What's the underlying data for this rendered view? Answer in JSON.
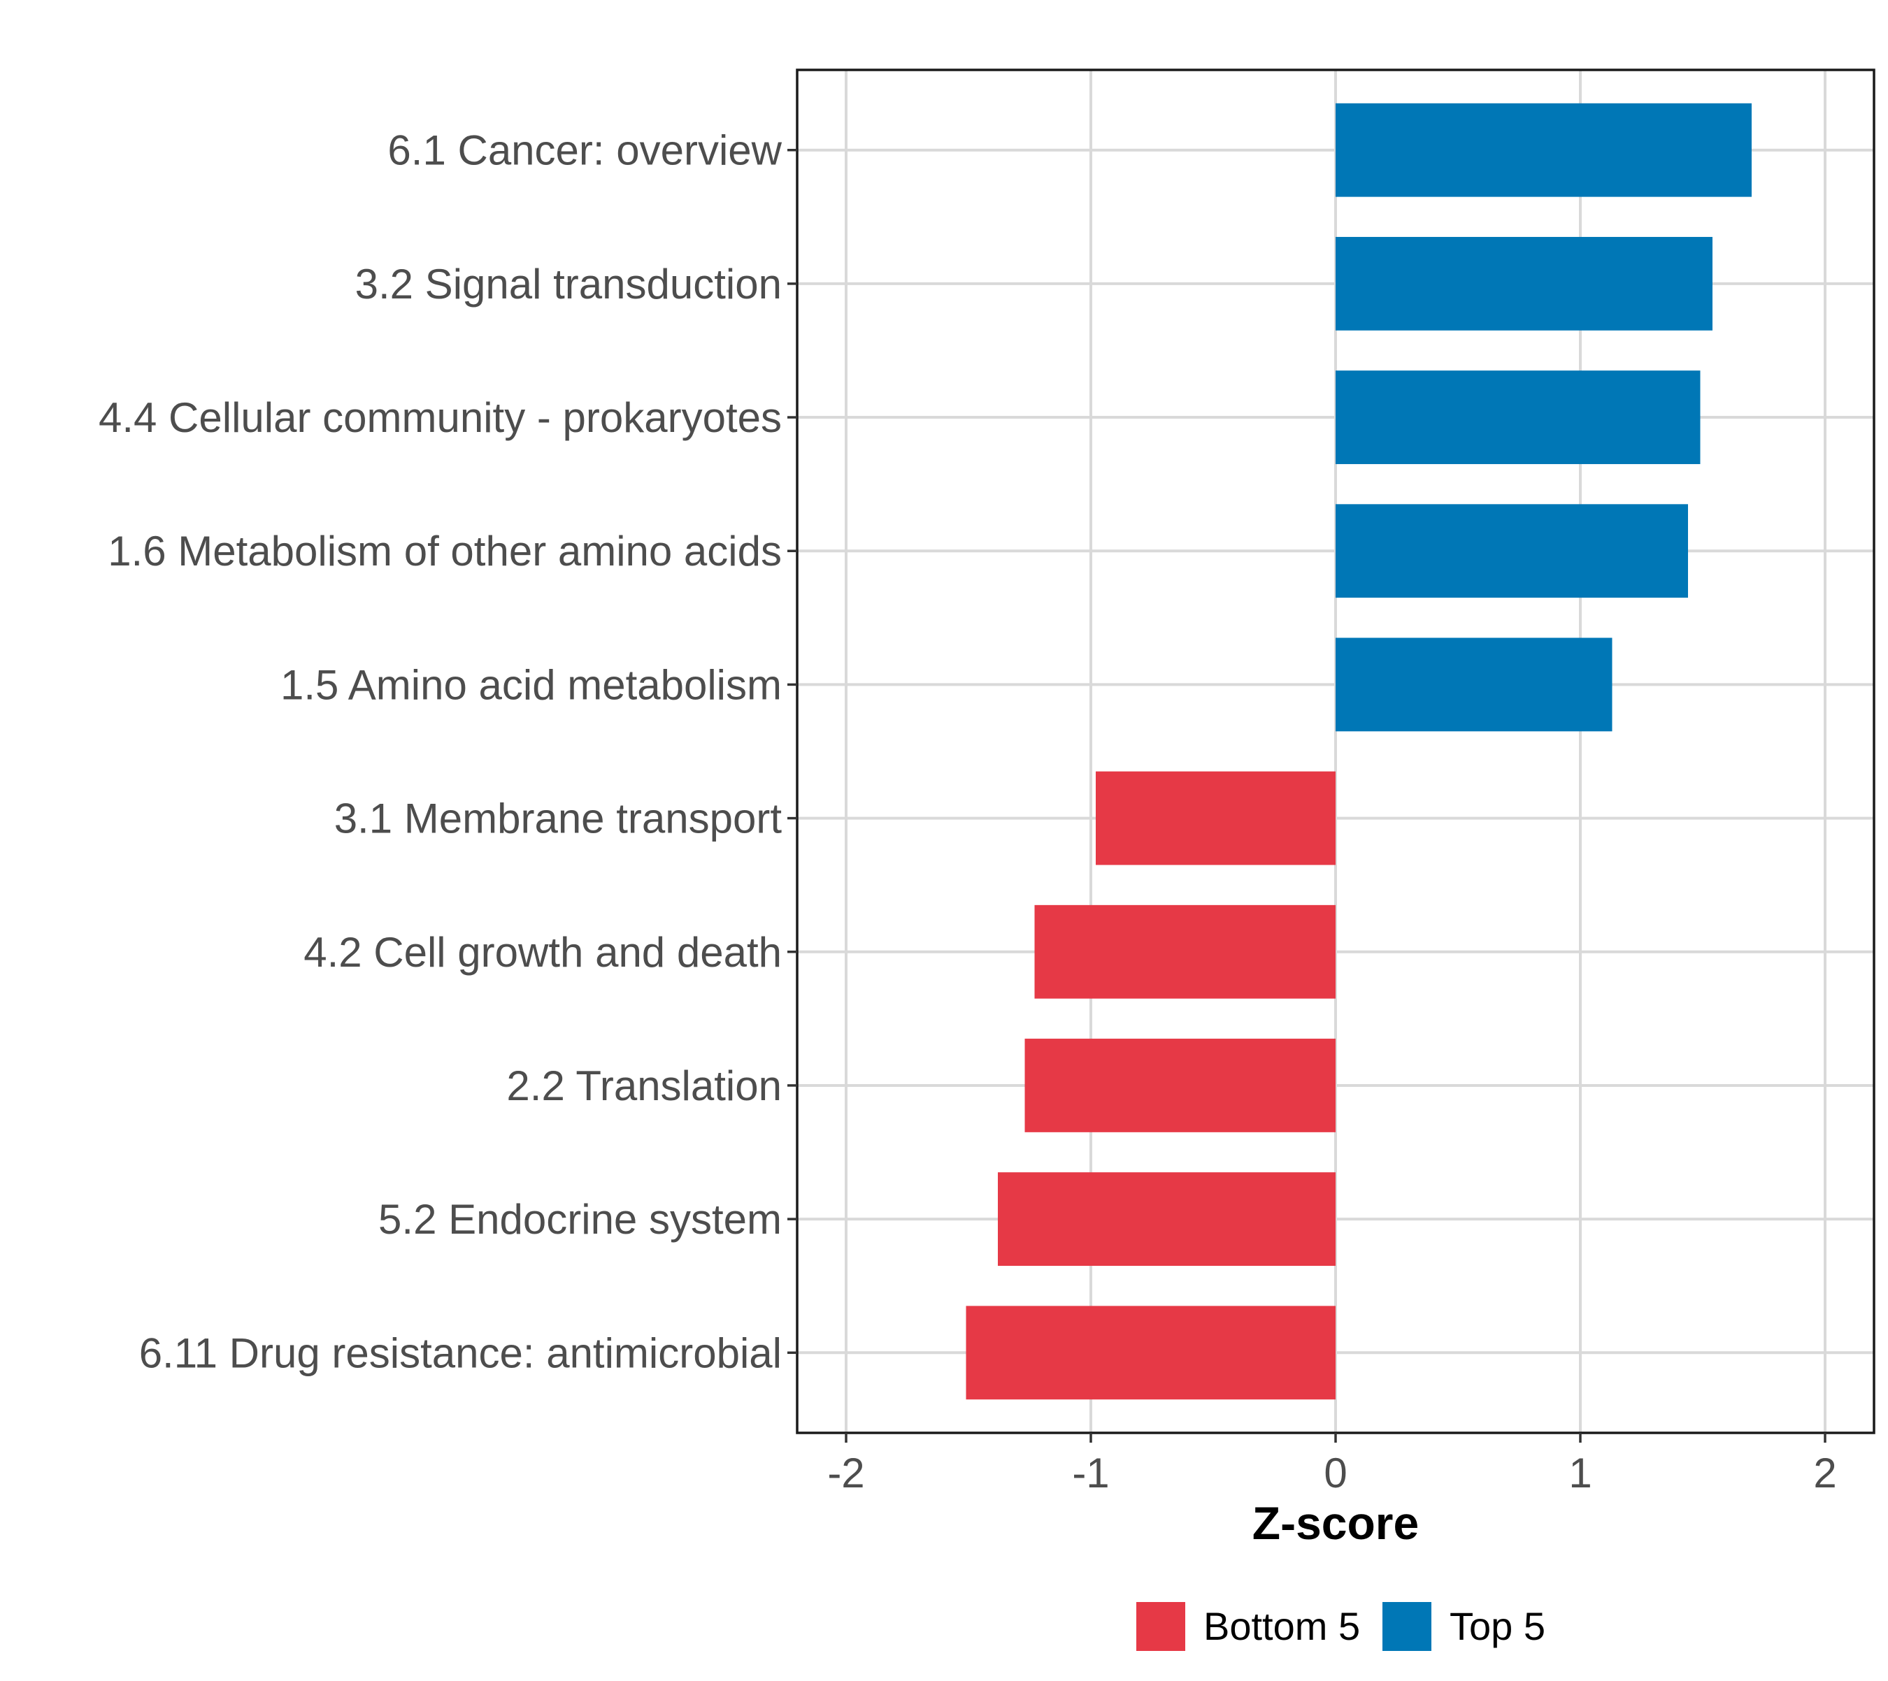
{
  "chart_data": {
    "type": "bar",
    "orientation": "horizontal",
    "categories": [
      "6.1 Cancer: overview",
      "3.2 Signal transduction",
      "4.4 Cellular community - prokaryotes",
      "1.6 Metabolism of other amino acids",
      "1.5 Amino acid metabolism",
      "3.1 Membrane transport",
      "4.2 Cell growth and death",
      "2.2 Translation",
      "5.2 Endocrine system",
      "6.11 Drug resistance: antimicrobial"
    ],
    "values": [
      1.7,
      1.54,
      1.49,
      1.44,
      1.13,
      -0.98,
      -1.23,
      -1.27,
      -1.38,
      -1.51
    ],
    "groups": [
      "Top 5",
      "Top 5",
      "Top 5",
      "Top 5",
      "Top 5",
      "Bottom 5",
      "Bottom 5",
      "Bottom 5",
      "Bottom 5",
      "Bottom 5"
    ],
    "xlabel": "Z-score",
    "ylabel": "",
    "xlim": [
      -2.2,
      2.2
    ],
    "xticks": [
      -2,
      -1,
      0,
      1,
      2
    ],
    "xtick_labels": [
      "-2",
      "-1",
      "0",
      "1",
      "2"
    ],
    "grid": true,
    "legend": {
      "position": "bottom",
      "entries": [
        {
          "label": "Bottom 5",
          "color": "#e63946"
        },
        {
          "label": "Top 5",
          "color": "#0077b6"
        }
      ]
    }
  }
}
